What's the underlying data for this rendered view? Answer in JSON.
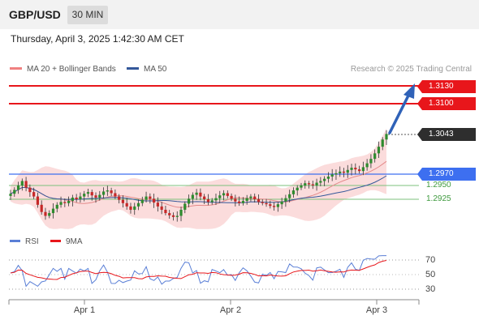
{
  "header": {
    "pair": "GBP/USD",
    "interval": "30 MIN"
  },
  "timestamp": "Thursday, April 3, 2025 1:42:30 AM CET",
  "legend": {
    "bollinger": {
      "label": "MA 20 + Bollinger Bands",
      "color": "#f08080"
    },
    "ma50": {
      "label": "MA 50",
      "color": "#34589a"
    }
  },
  "copyright": "Research © 2025 Trading Central",
  "levels": {
    "r2": "1.3130",
    "r1": "1.3100",
    "last": "1.3043",
    "pivot": "1.2970",
    "s1": "1.2950",
    "s2": "1.2925"
  },
  "rsi_panel": {
    "rsi_label": "RSI",
    "ma_label": "9MA",
    "rsi_color": "#5a7fd6",
    "ma_color": "#e8161b",
    "ticks": [
      "70",
      "50",
      "30"
    ]
  },
  "x_axis": {
    "labels": [
      "Apr 1",
      "Apr 2",
      "Apr 3"
    ]
  },
  "chart_data": {
    "type": "candlestick",
    "symbol": "GBP/USD",
    "timeframe": "30 MIN",
    "x_labels": [
      "Apr 1",
      "Apr 2",
      "Apr 3"
    ],
    "horizontal_levels": [
      {
        "value": 1.313,
        "color": "#e8161b"
      },
      {
        "value": 1.31,
        "color": "#e8161b"
      },
      {
        "value": 1.3043,
        "color": "#2e2e2e"
      },
      {
        "value": 1.297,
        "color": "#3d6ff0"
      },
      {
        "value": 1.295,
        "color": "#3e9a3e"
      },
      {
        "value": 1.2925,
        "color": "#3e9a3e"
      }
    ],
    "close_series": [
      1.2935,
      1.2942,
      1.295,
      1.2958,
      1.2946,
      1.2938,
      1.293,
      1.2915,
      1.2902,
      1.2895,
      1.29,
      1.2908,
      1.2915,
      1.292,
      1.2918,
      1.2922,
      1.2928,
      1.2925,
      1.293,
      1.2935,
      1.2938,
      1.2932,
      1.2928,
      1.2933,
      1.2939,
      1.2941,
      1.2936,
      1.293,
      1.2924,
      1.2918,
      1.2912,
      1.2906,
      1.2912,
      1.2918,
      1.2924,
      1.293,
      1.2926,
      1.2919,
      1.2912,
      1.2906,
      1.29,
      1.2896,
      1.2893,
      1.2895,
      1.2906,
      1.2917,
      1.2926,
      1.2933,
      1.2937,
      1.293,
      1.2925,
      1.292,
      1.2923,
      1.2927,
      1.2932,
      1.2936,
      1.2931,
      1.2926,
      1.2921,
      1.2918,
      1.2922,
      1.2927,
      1.293,
      1.2925,
      1.292,
      1.2918,
      1.2916,
      1.2913,
      1.2911,
      1.2916,
      1.2921,
      1.2927,
      1.2934,
      1.2941,
      1.2946,
      1.295,
      1.2954,
      1.2952,
      1.295,
      1.2955,
      1.2958,
      1.2962,
      1.2966,
      1.297,
      1.2972,
      1.2975,
      1.2973,
      1.2978,
      1.2982,
      1.2979,
      1.2976,
      1.2983,
      1.299,
      1.2998,
      1.3008,
      1.302,
      1.3033,
      1.3043
    ],
    "rsi_ticks": [
      70,
      50,
      30
    ],
    "rsi_last": 68
  }
}
